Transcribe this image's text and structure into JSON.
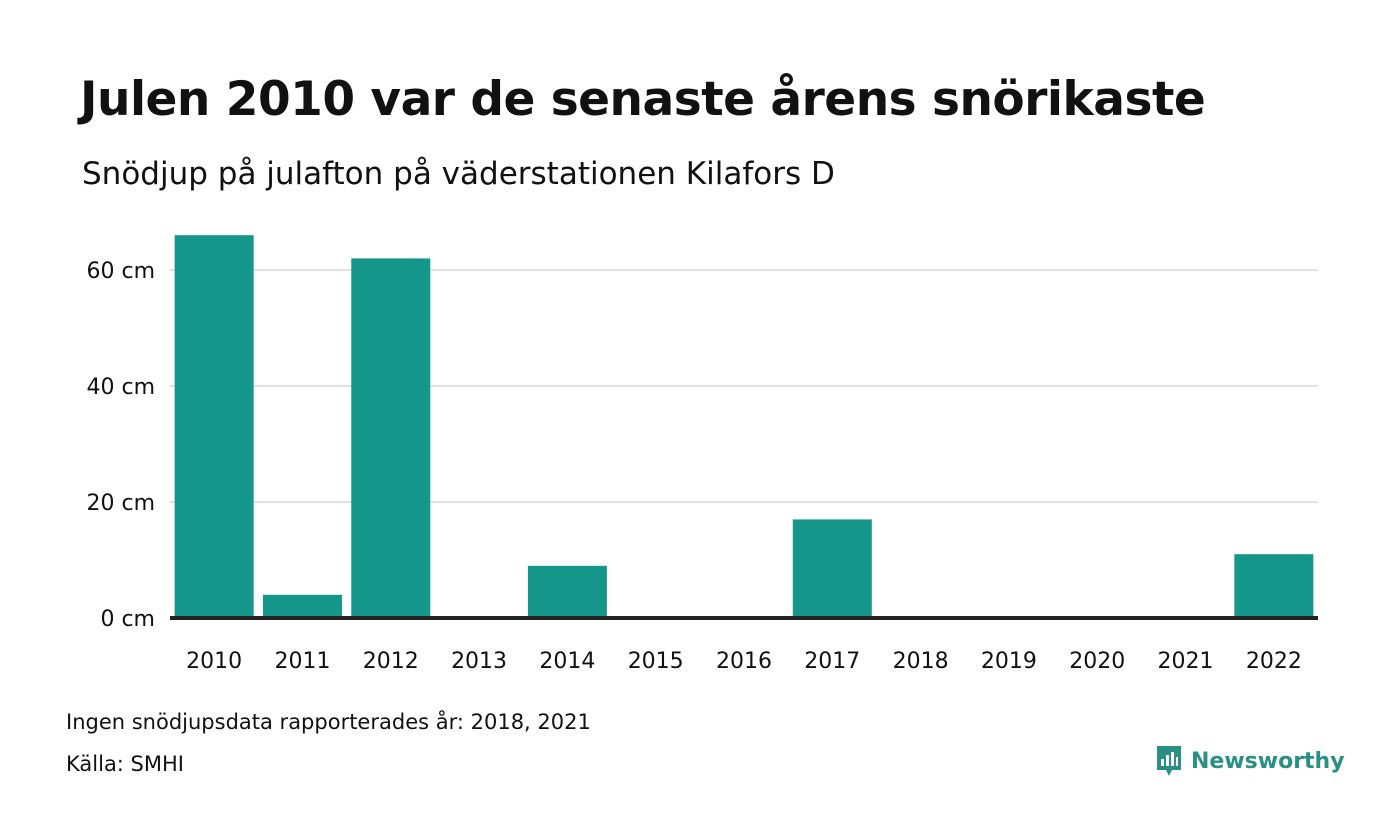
{
  "title": "Julen 2010 var de senaste årens snörikaste",
  "subtitle": "Snödjup på julafton på väderstationen Kilafors D",
  "note": "Ingen snödjupsdata rapporterades år: 2018, 2021",
  "source": "Källa: SMHI",
  "brand": {
    "name": "Newsworthy",
    "icon": "newsworthy-logo-icon",
    "color": "#2a8f84"
  },
  "colors": {
    "bar": "#14968a",
    "grid": "#e1e1e1",
    "axis": "#222222"
  },
  "chart_data": {
    "type": "bar",
    "title": "Julen 2010 var de senaste årens snörikaste",
    "subtitle": "Snödjup på julafton på väderstationen Kilafors D",
    "xlabel": "",
    "ylabel": "",
    "categories": [
      "2010",
      "2011",
      "2012",
      "2013",
      "2014",
      "2015",
      "2016",
      "2017",
      "2018",
      "2019",
      "2020",
      "2021",
      "2022"
    ],
    "values": [
      66,
      4,
      62,
      0,
      9,
      0,
      0,
      17,
      null,
      0,
      0,
      null,
      11
    ],
    "unit": "cm",
    "yticks": [
      0,
      20,
      40,
      60
    ],
    "ytick_labels": [
      "0 cm",
      "20 cm",
      "40 cm",
      "60 cm"
    ],
    "ylim": [
      0,
      68
    ],
    "grid": true,
    "legend": "none"
  }
}
